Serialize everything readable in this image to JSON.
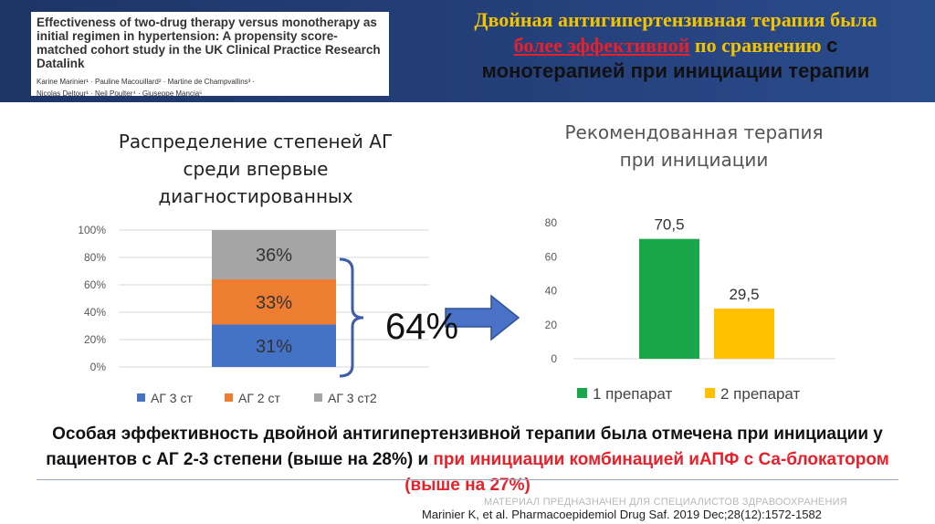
{
  "paper": {
    "title": "Effectiveness of two-drug therapy versus monotherapy as initial regimen in hypertension: A propensity score-matched cohort study in the UK Clinical Practice Research Datalink",
    "authors_line1": "Karine Marinier¹ · Pauline Macouillard² · Martine de Champvallins³ ·",
    "authors_line2": "Nicolas Deltour¹ · Neil Poulter⁴ · Giuseppe Mancia⁵"
  },
  "slide_title": {
    "part1": "Двойная антигипертензивная терапия была",
    "part2_red": "более эффективной",
    "part3": " по сравнению ",
    "part4": "с",
    "part5": "монотерапией при инициации терапии"
  },
  "left_chart_title": "Распределение степеней АГ среди впервые диагностированных",
  "right_chart_title": "Рекомендованная терапия при инициации",
  "bracket_label": "64%",
  "bottom": {
    "text1": "Особая эффективность двойной антигипертензивной терапии была отмечена при инициации у пациентов с АГ 2-3 степени (выше на 28%) и ",
    "text2_red": "при инициации комбинацией иАПФ с Са-блокатором (выше на 27%)"
  },
  "disclaimer": "МАТЕРИАЛ ПРЕДНАЗНАЧЕН ДЛЯ СПЕЦИАЛИСТОВ ЗДРАВООХРАНЕНИЯ",
  "citation": "Marinier K,  et al. Pharmacoepidemiol Drug Saf. 2019 Dec;28(12):1572-1582",
  "chart_data": [
    {
      "type": "bar",
      "stacked": true,
      "title": "Распределение степеней АГ среди впервые диагностированных",
      "ylim": [
        0,
        100
      ],
      "yticks": [
        "0%",
        "20%",
        "40%",
        "60%",
        "80%",
        "100%"
      ],
      "categories": [
        ""
      ],
      "series": [
        {
          "name": "АГ 3 ст",
          "values": [
            31
          ],
          "label": "31%",
          "color": "#4472c4"
        },
        {
          "name": "АГ 2 ст",
          "values": [
            33
          ],
          "label": "33%",
          "color": "#ed7d31"
        },
        {
          "name": "АГ 3 ст2",
          "values": [
            36
          ],
          "label": "36%",
          "color": "#a5a5a5"
        }
      ],
      "legend": "bottom"
    },
    {
      "type": "bar",
      "title": "Рекомендованная терапия при инициации",
      "ylim": [
        0,
        80
      ],
      "yticks": [
        "0",
        "20",
        "40",
        "60",
        "80"
      ],
      "categories": [
        "1 препарат",
        "2 препарат"
      ],
      "values": [
        70.5,
        29.5
      ],
      "labels": [
        "70,5",
        "29,5"
      ],
      "colors": [
        "#1aa64a",
        "#ffc000"
      ],
      "legend": "bottom"
    }
  ]
}
